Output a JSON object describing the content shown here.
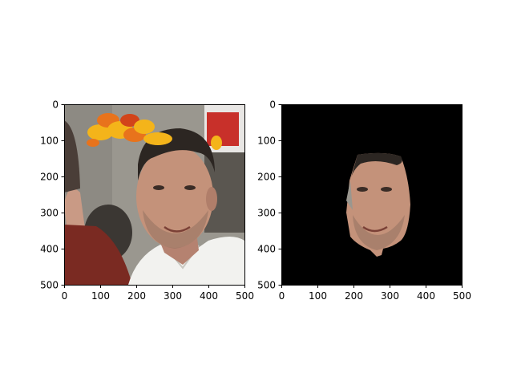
{
  "figure": {
    "background": "#ffffff"
  },
  "chart_data": [
    {
      "type": "image",
      "content": "photo of a smiling man with dark hair in a white collared shirt, an autumn-leaf crown overlay above his head, another person in a maroon shirt at the left edge",
      "xlim": [
        0,
        500
      ],
      "ylim": [
        500,
        0
      ],
      "x_ticks": [
        0,
        100,
        200,
        300,
        400,
        500
      ],
      "y_ticks": [
        0,
        100,
        200,
        300,
        400,
        500
      ],
      "x_tick_labels": [
        "0",
        "100",
        "200",
        "300",
        "400",
        "500"
      ],
      "y_tick_labels": [
        "0",
        "100",
        "200",
        "300",
        "400",
        "500"
      ],
      "colors": {
        "leaf_yellow": "#f4b41a",
        "leaf_orange": "#e8731c",
        "leaf_red": "#d2441a",
        "shirt_maroon": "#7a2a22",
        "shirt_white": "#f2f2ef",
        "hair": "#2c2622",
        "skin": "#c4927a",
        "background_grey": "#9a978f"
      }
    },
    {
      "type": "image",
      "content": "segmented face mask: the man's face region on a black background",
      "xlim": [
        0,
        500
      ],
      "ylim": [
        500,
        0
      ],
      "x_ticks": [
        0,
        100,
        200,
        300,
        400,
        500
      ],
      "y_ticks": [
        0,
        100,
        200,
        300,
        400,
        500
      ],
      "x_tick_labels": [
        "0",
        "100",
        "200",
        "300",
        "400",
        "500"
      ],
      "y_tick_labels": [
        "0",
        "100",
        "200",
        "300",
        "400",
        "500"
      ],
      "face_region": {
        "x_range": [
          175,
          355
        ],
        "y_range": [
          135,
          420
        ]
      },
      "colors": {
        "mask_background": "#000000",
        "skin": "#c4927a",
        "hair": "#2c2622"
      }
    }
  ]
}
